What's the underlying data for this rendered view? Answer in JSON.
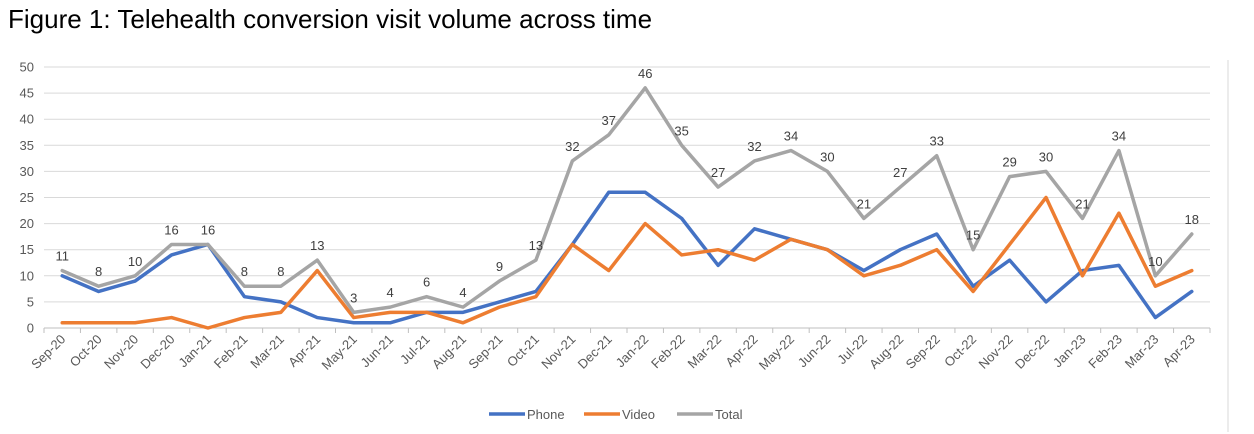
{
  "figure": {
    "title": "Figure 1: Telehealth conversion visit volume across time"
  },
  "chart_data": {
    "type": "line",
    "title": "Figure 1: Telehealth conversion visit volume across time",
    "xlabel": "",
    "ylabel": "",
    "ylim": [
      0,
      50
    ],
    "yticks": [
      "0",
      "5",
      "10",
      "15",
      "20",
      "25",
      "30",
      "35",
      "40",
      "45",
      "50"
    ],
    "grid": true,
    "legend_position": "bottom",
    "categories": [
      "Sep-20",
      "Oct-20",
      "Nov-20",
      "Dec-20",
      "Jan-21",
      "Feb-21",
      "Mar-21",
      "Apr-21",
      "May-21",
      "Jun-21",
      "Jul-21",
      "Aug-21",
      "Sep-21",
      "Oct-21",
      "Nov-21",
      "Dec-21",
      "Jan-22",
      "Feb-22",
      "Mar-22",
      "Apr-22",
      "May-22",
      "Jun-22",
      "Jul-22",
      "Aug-22",
      "Sep-22",
      "Oct-22",
      "Nov-22",
      "Dec-22",
      "Jan-23",
      "Feb-23",
      "Mar-23",
      "Apr-23"
    ],
    "series": [
      {
        "name": "Phone",
        "color": "#4472C4",
        "values": [
          10,
          7,
          9,
          14,
          16,
          6,
          5,
          2,
          1,
          1,
          3,
          3,
          5,
          7,
          16,
          26,
          26,
          21,
          12,
          19,
          17,
          15,
          11,
          15,
          18,
          8,
          13,
          5,
          11,
          12,
          2,
          7
        ]
      },
      {
        "name": "Video",
        "color": "#ED7D31",
        "values": [
          1,
          1,
          1,
          2,
          0,
          2,
          3,
          11,
          2,
          3,
          3,
          1,
          4,
          6,
          16,
          11,
          20,
          14,
          15,
          13,
          17,
          15,
          10,
          12,
          15,
          7,
          16,
          25,
          10,
          22,
          8,
          11
        ]
      },
      {
        "name": "Total",
        "color": "#A5A5A5",
        "labeled": true,
        "values": [
          11,
          8,
          10,
          16,
          16,
          8,
          8,
          13,
          3,
          4,
          6,
          4,
          9,
          13,
          32,
          37,
          46,
          35,
          27,
          32,
          34,
          30,
          21,
          27,
          33,
          15,
          29,
          30,
          21,
          34,
          10,
          18
        ],
        "data_labels": [
          "11",
          "8",
          "10",
          "16",
          "16",
          "8",
          "8",
          "13",
          "3",
          "4",
          "6",
          "4",
          "9",
          "13",
          "32",
          "37",
          "46",
          "35",
          "27",
          "32",
          "34",
          "30",
          "21",
          "27",
          "33",
          "15",
          "29",
          "30",
          "21",
          "34",
          "10",
          "18"
        ]
      }
    ]
  }
}
